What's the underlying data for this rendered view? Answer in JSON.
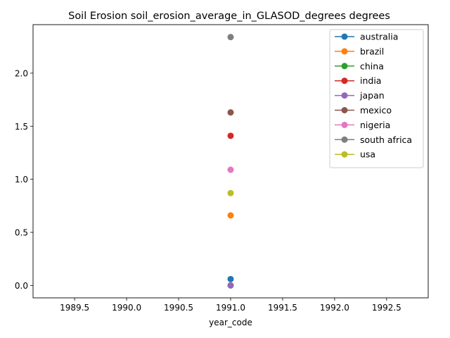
{
  "chart_data": {
    "type": "line",
    "title": "Soil Erosion soil_erosion_average_in_GLASOD_degrees degrees",
    "xlabel": "year_code",
    "ylabel": "",
    "xlim": [
      1989.1,
      1992.9
    ],
    "ylim": [
      -0.117,
      2.457
    ],
    "xticks": [
      1989.5,
      1990.0,
      1990.5,
      1991.0,
      1991.5,
      1992.0,
      1992.5
    ],
    "xtick_labels": [
      "1989.5",
      "1990.0",
      "1990.5",
      "1991.0",
      "1991.5",
      "1992.0",
      "1992.5"
    ],
    "yticks": [
      0.0,
      0.5,
      1.0,
      1.5,
      2.0
    ],
    "ytick_labels": [
      "0.0",
      "0.5",
      "1.0",
      "1.5",
      "2.0"
    ],
    "grid": false,
    "legend_position": "top-right",
    "series": [
      {
        "name": "australia",
        "color": "#1f77b4",
        "x": [
          1991
        ],
        "y": [
          0.06
        ]
      },
      {
        "name": "brazil",
        "color": "#ff7f0e",
        "x": [
          1991
        ],
        "y": [
          0.66
        ]
      },
      {
        "name": "china",
        "color": "#2ca02c",
        "x": [
          1991
        ],
        "y": [
          0.0
        ]
      },
      {
        "name": "india",
        "color": "#d62728",
        "x": [
          1991
        ],
        "y": [
          1.41
        ]
      },
      {
        "name": "japan",
        "color": "#9467bd",
        "x": [
          1991
        ],
        "y": [
          0.0
        ]
      },
      {
        "name": "mexico",
        "color": "#8c564b",
        "x": [
          1991
        ],
        "y": [
          1.63
        ]
      },
      {
        "name": "nigeria",
        "color": "#e377c2",
        "x": [
          1991
        ],
        "y": [
          1.09
        ]
      },
      {
        "name": "south africa",
        "color": "#7f7f7f",
        "x": [
          1991
        ],
        "y": [
          2.34
        ]
      },
      {
        "name": "usa",
        "color": "#bcbd22",
        "x": [
          1991
        ],
        "y": [
          0.87
        ]
      }
    ]
  }
}
